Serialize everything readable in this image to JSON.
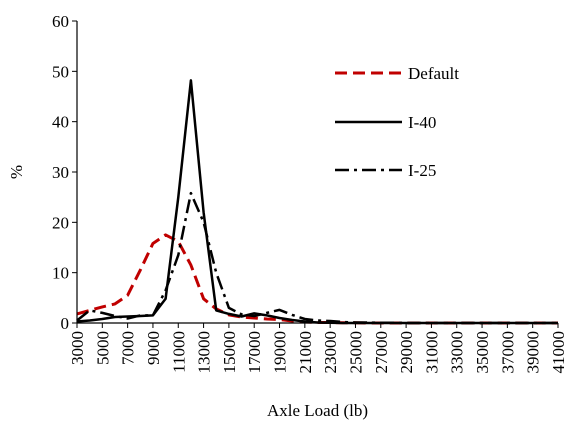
{
  "chart_data": {
    "type": "line",
    "title": "",
    "xlabel": "Axle Load (lb)",
    "ylabel": "%",
    "ylim": [
      0,
      60
    ],
    "yticks": [
      0,
      10,
      20,
      30,
      40,
      50,
      60
    ],
    "grid": false,
    "legend_position": "top-right",
    "x": [
      3000,
      4000,
      5000,
      6000,
      7000,
      8000,
      9000,
      10000,
      11000,
      12000,
      13000,
      14000,
      15000,
      16000,
      17000,
      18000,
      19000,
      20000,
      21000,
      22000,
      23000,
      24000,
      25000,
      26000,
      27000,
      28000,
      29000,
      30000,
      31000,
      32000,
      33000,
      34000,
      35000,
      36000,
      37000,
      38000,
      39000,
      40000,
      41000
    ],
    "x_tick_labels": [
      "3000",
      "5000",
      "7000",
      "9000",
      "11000",
      "13000",
      "15000",
      "17000",
      "19000",
      "21000",
      "23000",
      "25000",
      "27000",
      "29000",
      "31000",
      "33000",
      "35000",
      "37000",
      "39000",
      "41000"
    ],
    "series": [
      {
        "name": "Default",
        "color": "#c00000",
        "dash": "dashed",
        "values": [
          1.8,
          2.5,
          3.2,
          3.8,
          5.5,
          10.5,
          15.8,
          17.5,
          16.2,
          11.5,
          4.8,
          2.8,
          1.6,
          1.2,
          1.0,
          0.8,
          0.7,
          0.4,
          0.2,
          0.1,
          0.1,
          0.05,
          0.05,
          0,
          0,
          0,
          0,
          0,
          0,
          0,
          0,
          0,
          0,
          0,
          0,
          0,
          0,
          0,
          0
        ]
      },
      {
        "name": "I-40",
        "color": "#000000",
        "dash": "solid",
        "values": [
          0.3,
          0.5,
          0.8,
          1.2,
          1.3,
          1.4,
          1.5,
          4.8,
          25.0,
          48.2,
          22.0,
          2.5,
          1.8,
          1.3,
          1.9,
          1.5,
          1.0,
          0.6,
          0.3,
          0.1,
          0.05,
          0,
          0,
          0,
          0,
          0,
          0,
          0,
          0,
          0,
          0,
          0,
          0,
          0,
          0,
          0,
          0,
          0,
          0
        ]
      },
      {
        "name": "I-25",
        "color": "#000000",
        "dash": "dashdot",
        "values": [
          0.5,
          2.5,
          2.0,
          1.4,
          0.9,
          1.5,
          1.5,
          6.5,
          13.5,
          25.8,
          20.0,
          10.0,
          3.0,
          1.7,
          1.4,
          2.0,
          2.6,
          1.6,
          0.8,
          0.5,
          0.4,
          0.2,
          0.1,
          0.1,
          0.05,
          0.05,
          0,
          0,
          0,
          0,
          0,
          0,
          0,
          0,
          0,
          0,
          0,
          0,
          0
        ]
      }
    ]
  }
}
